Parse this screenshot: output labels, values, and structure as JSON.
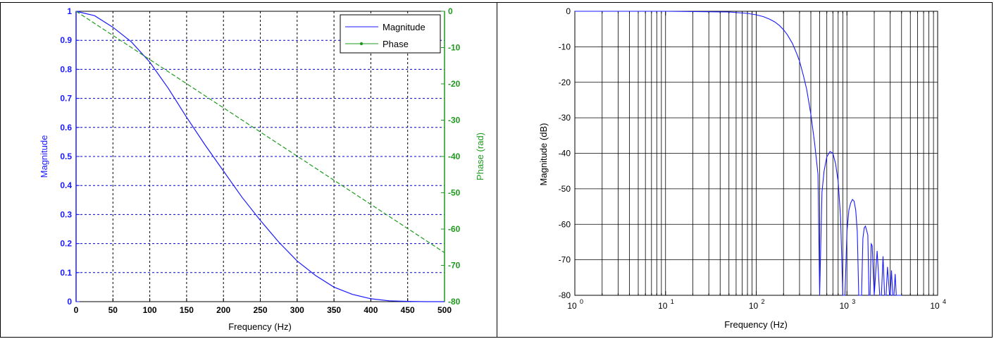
{
  "colors": {
    "magnitude": "#1a1aff",
    "phase": "#1f9a1f",
    "grid_left": "#0000cc",
    "grid_right": "#000000"
  },
  "chart_data": [
    {
      "type": "line",
      "xlabel": "Frequency (Hz)",
      "ylabel": "Magnitude",
      "y2label": "Phase (rad)",
      "xlim": [
        0,
        500
      ],
      "ylim": [
        0,
        1
      ],
      "y2lim": [
        -80,
        0
      ],
      "xticks": [
        "0",
        "50",
        "100",
        "150",
        "200",
        "250",
        "300",
        "350",
        "400",
        "450",
        "500"
      ],
      "yticks": [
        "0",
        "0.1",
        "0.2",
        "0.3",
        "0.4",
        "0.5",
        "0.6",
        "0.7",
        "0.8",
        "0.9",
        "1"
      ],
      "y2ticks": [
        "-80",
        "-70",
        "-60",
        "-50",
        "-40",
        "-30",
        "-20",
        "-10",
        "0"
      ],
      "grid": true,
      "legend_position": "top-right",
      "series": [
        {
          "name": "Magnitude",
          "axis": "left",
          "x": [
            0,
            25,
            50,
            75,
            100,
            125,
            150,
            175,
            200,
            225,
            250,
            275,
            300,
            325,
            350,
            375,
            400,
            425,
            450,
            475,
            500
          ],
          "y": [
            1.0,
            0.985,
            0.945,
            0.895,
            0.825,
            0.735,
            0.635,
            0.54,
            0.45,
            0.36,
            0.28,
            0.205,
            0.14,
            0.09,
            0.05,
            0.025,
            0.01,
            0.003,
            0.001,
            0.0,
            0.0
          ]
        },
        {
          "name": "Phase",
          "axis": "right",
          "x": [
            0,
            500
          ],
          "y": [
            0,
            -66.5
          ]
        }
      ]
    },
    {
      "type": "line",
      "xlabel": "Frequency (Hz)",
      "ylabel": "Magnitude (dB)",
      "xscale": "log",
      "xlim": [
        1,
        10000
      ],
      "ylim": [
        -80,
        0
      ],
      "xtick_bases": [
        "10",
        "10",
        "10",
        "10",
        "10"
      ],
      "xtick_exponents": [
        "0",
        "1",
        "2",
        "3",
        "4"
      ],
      "yticks": [
        "-80",
        "-70",
        "-60",
        "-50",
        "-40",
        "-30",
        "-20",
        "-10",
        "0"
      ],
      "grid": true,
      "series": [
        {
          "x": [
            1,
            10,
            50,
            80,
            100,
            120,
            140,
            160,
            180,
            200,
            220,
            250,
            280,
            300,
            330,
            360,
            400,
            440,
            480,
            500,
            530,
            560,
            600,
            650,
            700,
            750,
            800,
            850,
            900,
            950,
            1000,
            1050,
            1100,
            1150,
            1200,
            1250,
            1300,
            1350,
            1400,
            1450,
            1500,
            1550,
            1600,
            1700,
            1750,
            1800,
            1850,
            1900,
            2000,
            2150,
            2300,
            2400,
            2500,
            2600,
            2700,
            2800,
            2950,
            3000,
            3100,
            3200,
            3300,
            3400,
            3500,
            3600,
            3700,
            3800,
            3900,
            4000
          ],
          "y": [
            0,
            0,
            -0.2,
            -0.6,
            -1,
            -1.5,
            -2.2,
            -3,
            -4,
            -5.2,
            -6.6,
            -9,
            -12,
            -14,
            -18,
            -22,
            -29,
            -37,
            -46,
            -80,
            -51,
            -45,
            -41,
            -39.5,
            -40,
            -43,
            -48,
            -58,
            -80,
            -80,
            -62,
            -56,
            -54,
            -53,
            -53.5,
            -56,
            -62,
            -80,
            -80,
            -80,
            -64,
            -61,
            -60.5,
            -63,
            -80,
            -80,
            -65.5,
            -66,
            -80,
            -67.5,
            -80,
            -80,
            -69,
            -80,
            -80,
            -72,
            -80,
            -80,
            -73,
            -80,
            -80,
            -74,
            -80,
            -80,
            -80,
            -80,
            -80,
            -80
          ]
        }
      ]
    }
  ]
}
